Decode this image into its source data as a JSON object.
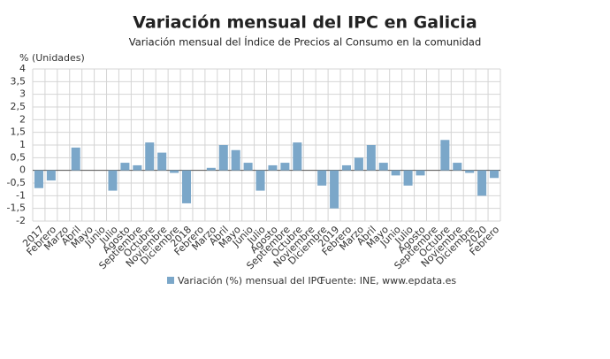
{
  "chart_data": {
    "type": "bar",
    "title": "Variación mensual del IPC en Galicia",
    "subtitle": "Variación mensual del Índice de Precios al Consumo en la comunidad",
    "y_label": "% (Unidades)",
    "source": "Fuente: INE, www.epdata.es",
    "categories": [
      "2017",
      "Febrero",
      "Marzo",
      "Abril",
      "Mayo",
      "Junio",
      "Julio",
      "Agosto",
      "Septiembre",
      "Octubre",
      "Noviembre",
      "Diciembre",
      "2018",
      "Febrero",
      "Marzo",
      "Abril",
      "Mayo",
      "Junio",
      "Julio",
      "Agosto",
      "Septiembre",
      "Octubre",
      "Noviembre",
      "Diciembre",
      "2019",
      "Febrero",
      "Marzo",
      "Abril",
      "Mayo",
      "Junio",
      "Julio",
      "Agosto",
      "Septiembre",
      "Octubre",
      "Noviembre",
      "Diciembre",
      "2020",
      "Febrero"
    ],
    "series": [
      {
        "name": "Variación (%) mensual del IPC",
        "color": "#7ba7c9",
        "values": [
          -0.7,
          -0.4,
          0.0,
          0.9,
          0.0,
          0.0,
          -0.8,
          0.3,
          0.2,
          1.1,
          0.7,
          -0.1,
          -1.3,
          0.0,
          0.1,
          1.0,
          0.8,
          0.3,
          -0.8,
          0.2,
          0.3,
          1.1,
          0.0,
          -0.6,
          -1.5,
          0.2,
          0.5,
          1.0,
          0.3,
          -0.2,
          -0.6,
          -0.2,
          0.0,
          1.2,
          0.3,
          -0.1,
          -1.0,
          -0.3
        ]
      }
    ],
    "ylim": [
      -2,
      4
    ],
    "yticks": [
      -2,
      {
        "value": -1.5,
        "label": "-1,5"
      },
      -1,
      {
        "value": -0.5,
        "label": "-0,5"
      },
      0,
      {
        "value": 0.5,
        "label": "0,5"
      },
      1,
      {
        "value": 1.5,
        "label": "1,5"
      },
      2,
      {
        "value": 2.5,
        "label": "2,5"
      },
      3,
      {
        "value": 3.5,
        "label": "3,5"
      },
      4
    ],
    "grid": true
  }
}
